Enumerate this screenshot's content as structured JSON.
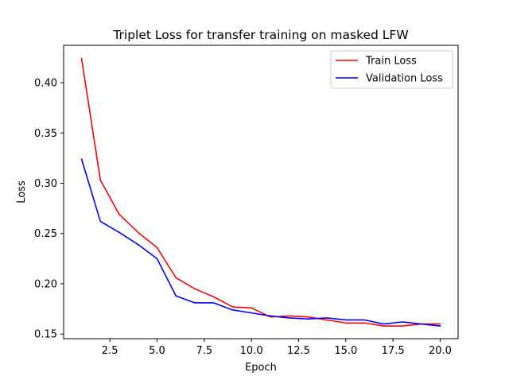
{
  "chart_data": {
    "type": "line",
    "title": "Triplet Loss for transfer training on masked LFW",
    "xlabel": "Epoch",
    "ylabel": "Loss",
    "xlim": [
      0.05,
      20.95
    ],
    "ylim": [
      0.1454,
      0.4372
    ],
    "xticks": [
      2.5,
      5.0,
      7.5,
      10.0,
      12.5,
      15.0,
      17.5,
      20.0
    ],
    "xtick_labels": [
      "2.5",
      "5.0",
      "7.5",
      "10.0",
      "12.5",
      "15.0",
      "17.5",
      "20.0"
    ],
    "yticks": [
      0.15,
      0.2,
      0.25,
      0.3,
      0.35,
      0.4
    ],
    "ytick_labels": [
      "0.15",
      "0.20",
      "0.25",
      "0.30",
      "0.35",
      "0.40"
    ],
    "grid": false,
    "legend_position": "top-right",
    "x": [
      1,
      2,
      3,
      4,
      5,
      6,
      7,
      8,
      9,
      10,
      11,
      12,
      13,
      14,
      15,
      16,
      17,
      18,
      19,
      20
    ],
    "series": [
      {
        "name": "Train Loss",
        "color": "#ff0000",
        "values": [
          0.424,
          0.303,
          0.269,
          0.251,
          0.236,
          0.206,
          0.195,
          0.187,
          0.177,
          0.176,
          0.167,
          0.168,
          0.167,
          0.164,
          0.161,
          0.161,
          0.158,
          0.158,
          0.16,
          0.16
        ]
      },
      {
        "name": "Validation Loss",
        "color": "#0000ff",
        "values": [
          0.324,
          0.262,
          0.251,
          0.239,
          0.225,
          0.188,
          0.181,
          0.181,
          0.174,
          0.171,
          0.168,
          0.166,
          0.165,
          0.166,
          0.164,
          0.164,
          0.16,
          0.162,
          0.16,
          0.158
        ]
      }
    ]
  }
}
